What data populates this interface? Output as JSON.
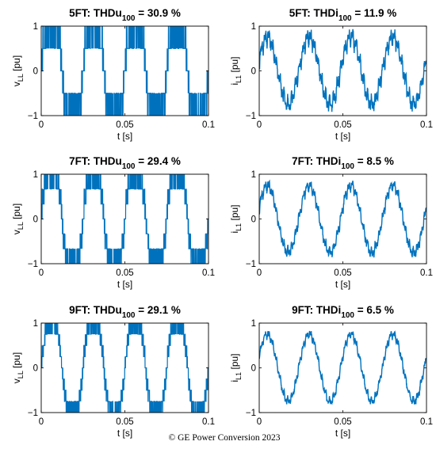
{
  "figure": {
    "copyright": "© GE Power Conversion 2023"
  },
  "colors": {
    "line": "#0072BD",
    "axes": "#000000",
    "background": "#ffffff"
  },
  "chart_data": [
    {
      "id": "p1",
      "type": "line",
      "signal": "voltage",
      "levels": 5,
      "title_main": "5FT: THDu",
      "title_sub": "100",
      "title_rest": " = 30.9 %",
      "ylabel_main": "v",
      "ylabel_sub": "LL",
      "ylabel_rest": " [pu]",
      "xlabel": "t [s]",
      "xlim": [
        0,
        0.1
      ],
      "ylim": [
        -1,
        1
      ],
      "xticks": [
        0,
        0.05,
        0.1
      ],
      "xticklabels": [
        "0",
        "0.05",
        "0.1"
      ],
      "yticks": [
        -1,
        0,
        1
      ],
      "yticklabels": [
        "−1",
        "0",
        "1"
      ],
      "series": [
        {
          "frequency_hz": 40,
          "phase_deg": 0,
          "amplitude_pu": 1.0,
          "waveform": "staircase"
        }
      ]
    },
    {
      "id": "p2",
      "type": "line",
      "signal": "current",
      "title_main": "5FT: THDi",
      "title_sub": "100",
      "title_rest": " = 11.9 %",
      "ylabel_main": "i",
      "ylabel_sub": "L1",
      "ylabel_rest": " [pu]",
      "xlabel": "t [s]",
      "xlim": [
        0,
        0.1
      ],
      "ylim": [
        -1,
        1
      ],
      "xticks": [
        0,
        0.05,
        0.1
      ],
      "xticklabels": [
        "0",
        "0.05",
        "0.1"
      ],
      "yticks": [
        -1,
        0,
        1
      ],
      "yticklabels": [
        "−1",
        "0",
        "1"
      ],
      "series": [
        {
          "frequency_hz": 40,
          "phase_deg": 20,
          "amplitude_pu": 0.75,
          "waveform": "sine"
        }
      ]
    },
    {
      "id": "p3",
      "type": "line",
      "signal": "voltage",
      "levels": 7,
      "title_main": "7FT: THDu",
      "title_sub": "100",
      "title_rest": " = 29.4 %",
      "ylabel_main": "v",
      "ylabel_sub": "LL",
      "ylabel_rest": " [pu]",
      "xlabel": "t [s]",
      "xlim": [
        0,
        0.1
      ],
      "ylim": [
        -1,
        1
      ],
      "xticks": [
        0,
        0.05,
        0.1
      ],
      "xticklabels": [
        "0",
        "0.05",
        "0.1"
      ],
      "yticks": [
        -1,
        0,
        1
      ],
      "yticklabels": [
        "−1",
        "0",
        "1"
      ],
      "series": [
        {
          "frequency_hz": 40,
          "phase_deg": 0,
          "amplitude_pu": 1.0,
          "waveform": "staircase"
        }
      ]
    },
    {
      "id": "p4",
      "type": "line",
      "signal": "current",
      "title_main": "7FT: THDi",
      "title_sub": "100",
      "title_rest": " = 8.5 %",
      "ylabel_main": "i",
      "ylabel_sub": "L1",
      "ylabel_rest": " [pu]",
      "xlabel": "t [s]",
      "xlim": [
        0,
        0.1
      ],
      "ylim": [
        -1,
        1
      ],
      "xticks": [
        0,
        0.05,
        0.1
      ],
      "xticklabels": [
        "0",
        "0.05",
        "0.1"
      ],
      "yticks": [
        -1,
        0,
        1
      ],
      "yticklabels": [
        "−1",
        "0",
        "1"
      ],
      "series": [
        {
          "frequency_hz": 40,
          "phase_deg": 20,
          "amplitude_pu": 0.75,
          "waveform": "sine"
        }
      ]
    },
    {
      "id": "p5",
      "type": "line",
      "signal": "voltage",
      "levels": 9,
      "title_main": "9FT: THDu",
      "title_sub": "100",
      "title_rest": " = 29.1 %",
      "ylabel_main": "v",
      "ylabel_sub": "LL",
      "ylabel_rest": " [pu]",
      "xlabel": "t [s]",
      "xlim": [
        0,
        0.1
      ],
      "ylim": [
        -1,
        1
      ],
      "xticks": [
        0,
        0.05,
        0.1
      ],
      "xticklabels": [
        "0",
        "0.05",
        "0.1"
      ],
      "yticks": [
        -1,
        0,
        1
      ],
      "yticklabels": [
        "−1",
        "0",
        "1"
      ],
      "series": [
        {
          "frequency_hz": 40,
          "phase_deg": 0,
          "amplitude_pu": 1.0,
          "waveform": "staircase"
        }
      ]
    },
    {
      "id": "p6",
      "type": "line",
      "signal": "current",
      "title_main": "9FT: THDi",
      "title_sub": "100",
      "title_rest": " = 6.5 %",
      "ylabel_main": "i",
      "ylabel_sub": "L1",
      "ylabel_rest": " [pu]",
      "xlabel": "t [s]",
      "xlim": [
        0,
        0.1
      ],
      "ylim": [
        -1,
        1
      ],
      "xticks": [
        0,
        0.05,
        0.1
      ],
      "xticklabels": [
        "0",
        "0.05",
        "0.1"
      ],
      "yticks": [
        -1,
        0,
        1
      ],
      "yticklabels": [
        "−1",
        "0",
        "1"
      ],
      "series": [
        {
          "frequency_hz": 40,
          "phase_deg": 20,
          "amplitude_pu": 0.75,
          "waveform": "sine"
        }
      ]
    }
  ]
}
